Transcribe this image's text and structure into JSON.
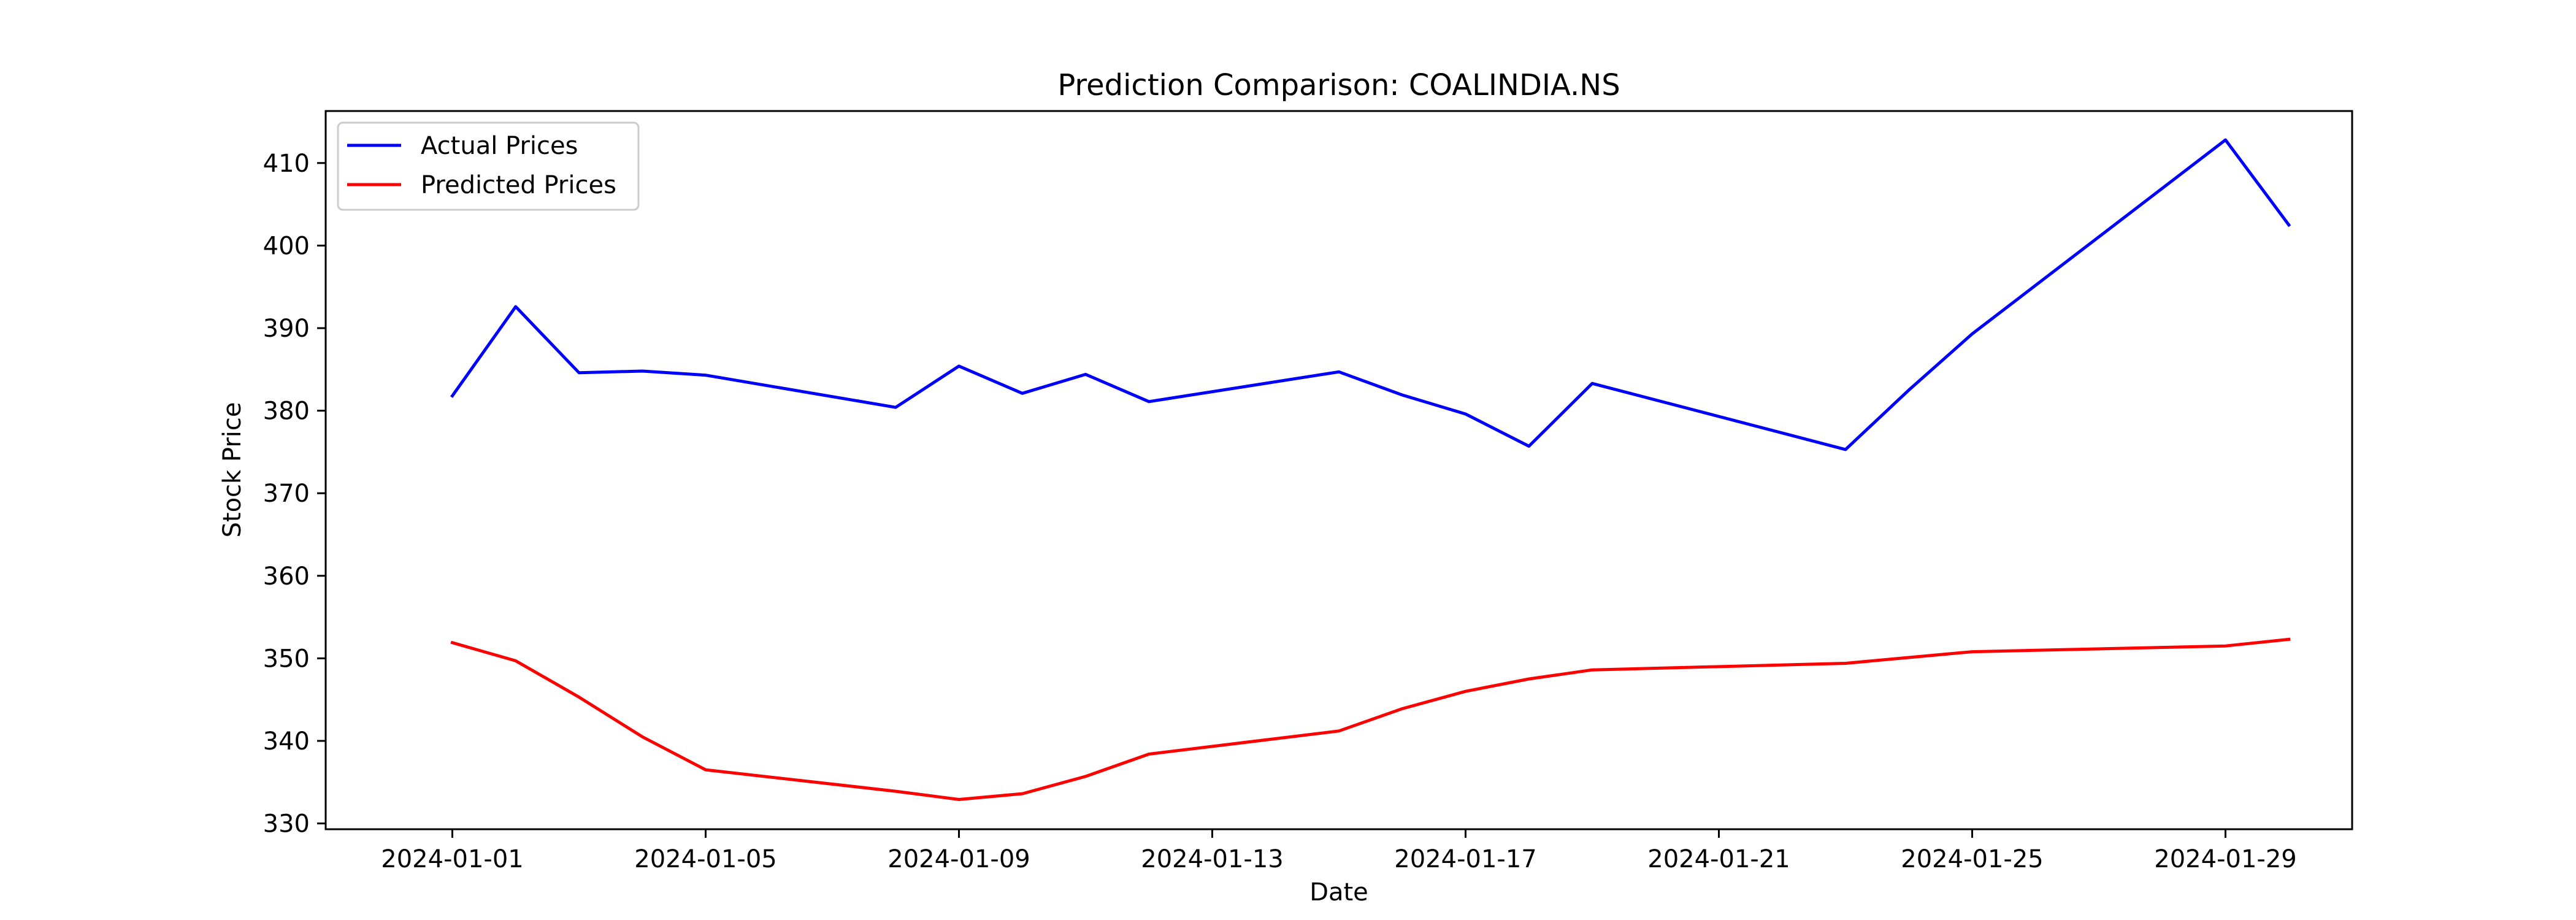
{
  "chart_data": {
    "type": "line",
    "title": "Prediction Comparison: COALINDIA.NS",
    "xlabel": "Date",
    "ylabel": "Stock Price",
    "x_ticks": [
      "2024-01-01",
      "2024-01-05",
      "2024-01-09",
      "2024-01-13",
      "2024-01-17",
      "2024-01-21",
      "2024-01-25",
      "2024-01-29"
    ],
    "y_ticks": [
      330,
      340,
      350,
      360,
      370,
      380,
      390,
      400,
      410
    ],
    "xlim": [
      "2023-12-30",
      "2024-01-31"
    ],
    "ylim": [
      329.3,
      416.3
    ],
    "grid": false,
    "legend_position": "top-left",
    "series": [
      {
        "name": "Actual Prices",
        "color": "#0000ff",
        "points": [
          {
            "x": "2024-01-01",
            "y": 381.8
          },
          {
            "x": "2024-01-02",
            "y": 392.6
          },
          {
            "x": "2024-01-03",
            "y": 384.6
          },
          {
            "x": "2024-01-04",
            "y": 384.8
          },
          {
            "x": "2024-01-05",
            "y": 384.3
          },
          {
            "x": "2024-01-08",
            "y": 380.4
          },
          {
            "x": "2024-01-09",
            "y": 385.4
          },
          {
            "x": "2024-01-10",
            "y": 382.1
          },
          {
            "x": "2024-01-11",
            "y": 384.4
          },
          {
            "x": "2024-01-12",
            "y": 381.1
          },
          {
            "x": "2024-01-15",
            "y": 384.7
          },
          {
            "x": "2024-01-16",
            "y": 381.9
          },
          {
            "x": "2024-01-17",
            "y": 379.6
          },
          {
            "x": "2024-01-18",
            "y": 375.7
          },
          {
            "x": "2024-01-19",
            "y": 383.3
          },
          {
            "x": "2024-01-23",
            "y": 375.3
          },
          {
            "x": "2024-01-24",
            "y": 382.5
          },
          {
            "x": "2024-01-25",
            "y": 389.3
          },
          {
            "x": "2024-01-29",
            "y": 412.8
          },
          {
            "x": "2024-01-30",
            "y": 402.5
          }
        ]
      },
      {
        "name": "Predicted Prices",
        "color": "#ff0000",
        "points": [
          {
            "x": "2024-01-01",
            "y": 351.9
          },
          {
            "x": "2024-01-02",
            "y": 349.7
          },
          {
            "x": "2024-01-03",
            "y": 345.3
          },
          {
            "x": "2024-01-04",
            "y": 340.5
          },
          {
            "x": "2024-01-05",
            "y": 336.5
          },
          {
            "x": "2024-01-08",
            "y": 333.9
          },
          {
            "x": "2024-01-09",
            "y": 332.9
          },
          {
            "x": "2024-01-10",
            "y": 333.6
          },
          {
            "x": "2024-01-11",
            "y": 335.7
          },
          {
            "x": "2024-01-12",
            "y": 338.4
          },
          {
            "x": "2024-01-15",
            "y": 341.2
          },
          {
            "x": "2024-01-16",
            "y": 343.9
          },
          {
            "x": "2024-01-17",
            "y": 346.0
          },
          {
            "x": "2024-01-18",
            "y": 347.5
          },
          {
            "x": "2024-01-19",
            "y": 348.6
          },
          {
            "x": "2024-01-23",
            "y": 349.4
          },
          {
            "x": "2024-01-24",
            "y": 350.1
          },
          {
            "x": "2024-01-25",
            "y": 350.8
          },
          {
            "x": "2024-01-29",
            "y": 351.5
          },
          {
            "x": "2024-01-30",
            "y": 352.3
          }
        ]
      }
    ]
  }
}
